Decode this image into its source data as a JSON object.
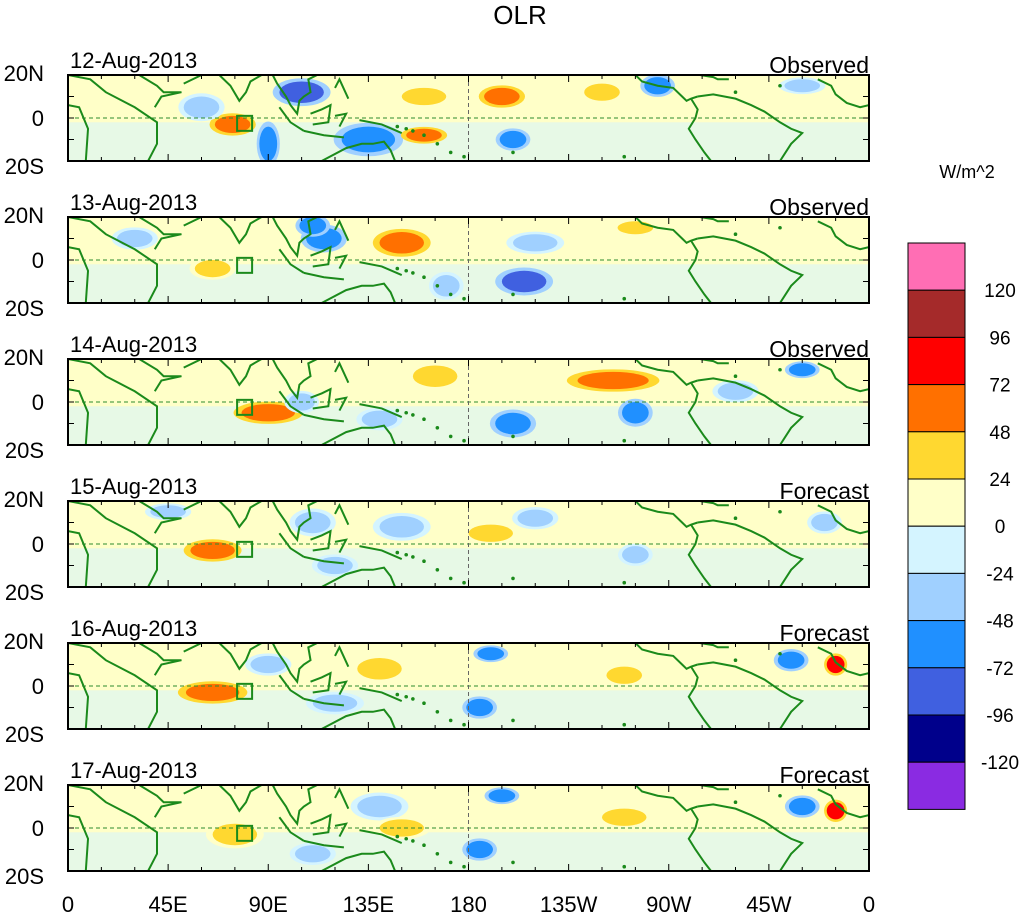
{
  "chart_data": {
    "type": "heatmap",
    "title": "OLR",
    "units": "W/m^2",
    "lat_range": [
      -20,
      20
    ],
    "lon_range": [
      0,
      360
    ],
    "y_tick_labels": [
      "20N",
      "0",
      "20S"
    ],
    "x_tick_labels": [
      "0",
      "45E",
      "90E",
      "135E",
      "180",
      "135W",
      "90W",
      "45W",
      "0"
    ],
    "colorbar": {
      "labels": [
        "120",
        "96",
        "72",
        "48",
        "24",
        "0",
        "-24",
        "-48",
        "-72",
        "-96",
        "-120"
      ],
      "colors": [
        "#ff6eb4",
        "#a52a2a",
        "#ff0000",
        "#ff7000",
        "#ffd830",
        "#ffffc8",
        "#d4f4ff",
        "#a0d0ff",
        "#2090ff",
        "#4060e0",
        "#00008b",
        "#8a2be2"
      ]
    },
    "panels": [
      {
        "date": "12-Aug-2013",
        "kind": "Observed"
      },
      {
        "date": "13-Aug-2013",
        "kind": "Observed"
      },
      {
        "date": "14-Aug-2013",
        "kind": "Observed"
      },
      {
        "date": "15-Aug-2013",
        "kind": "Forecast"
      },
      {
        "date": "16-Aug-2013",
        "kind": "Forecast"
      },
      {
        "date": "17-Aug-2013",
        "kind": "Forecast"
      }
    ],
    "anomaly_blobs": [
      [
        [
          -10,
          135,
          12,
          6,
          -60
        ],
        [
          12,
          105,
          10,
          5,
          -90
        ],
        [
          15,
          265,
          6,
          4,
          -70
        ],
        [
          10,
          195,
          8,
          4,
          48
        ],
        [
          10,
          160,
          10,
          4,
          40
        ],
        [
          -3,
          74,
          8,
          4,
          48
        ],
        [
          -8,
          160,
          8,
          3,
          48
        ],
        [
          -12,
          90,
          4,
          8,
          -60
        ],
        [
          -10,
          200,
          6,
          4,
          -60
        ],
        [
          5,
          60,
          8,
          5,
          -40
        ],
        [
          15,
          330,
          8,
          3,
          -30
        ],
        [
          12,
          240,
          8,
          4,
          30
        ]
      ],
      [
        [
          8,
          150,
          10,
          5,
          60
        ],
        [
          10,
          115,
          8,
          5,
          -60
        ],
        [
          -10,
          205,
          10,
          5,
          -90
        ],
        [
          16,
          110,
          6,
          4,
          -70
        ],
        [
          -4,
          65,
          8,
          4,
          40
        ],
        [
          8,
          210,
          10,
          4,
          -40
        ],
        [
          15,
          255,
          8,
          3,
          30
        ],
        [
          10,
          30,
          8,
          4,
          -30
        ],
        [
          -12,
          170,
          6,
          5,
          -40
        ]
      ],
      [
        [
          10,
          245,
          16,
          4,
          60
        ],
        [
          -5,
          90,
          12,
          4,
          48
        ],
        [
          -10,
          200,
          8,
          5,
          -70
        ],
        [
          12,
          165,
          10,
          5,
          40
        ],
        [
          0,
          105,
          6,
          4,
          -48
        ],
        [
          -5,
          255,
          6,
          5,
          -50
        ],
        [
          15,
          330,
          6,
          3,
          -50
        ],
        [
          5,
          300,
          8,
          4,
          -30
        ],
        [
          -8,
          140,
          8,
          4,
          -40
        ]
      ],
      [
        [
          -3,
          65,
          10,
          4,
          48
        ],
        [
          10,
          110,
          8,
          5,
          -40
        ],
        [
          8,
          150,
          10,
          5,
          -40
        ],
        [
          12,
          210,
          8,
          4,
          -30
        ],
        [
          10,
          340,
          6,
          4,
          -48
        ],
        [
          -5,
          255,
          6,
          4,
          -40
        ],
        [
          5,
          190,
          10,
          4,
          24
        ],
        [
          -10,
          120,
          8,
          4,
          -40
        ],
        [
          15,
          45,
          8,
          3,
          -30
        ]
      ],
      [
        [
          -3,
          65,
          12,
          4,
          55
        ],
        [
          15,
          190,
          6,
          3,
          -70
        ],
        [
          12,
          325,
          6,
          4,
          -60
        ],
        [
          10,
          345,
          4,
          4,
          72
        ],
        [
          -10,
          185,
          6,
          4,
          -50
        ],
        [
          8,
          140,
          10,
          5,
          30
        ],
        [
          -8,
          120,
          10,
          4,
          -40
        ],
        [
          10,
          90,
          8,
          4,
          -30
        ],
        [
          5,
          250,
          8,
          4,
          24
        ]
      ],
      [
        [
          15,
          195,
          6,
          3,
          -70
        ],
        [
          10,
          330,
          6,
          4,
          -60
        ],
        [
          8,
          345,
          4,
          4,
          72
        ],
        [
          -3,
          75,
          10,
          5,
          40
        ],
        [
          10,
          140,
          10,
          5,
          -40
        ],
        [
          -10,
          185,
          6,
          4,
          -50
        ],
        [
          0,
          150,
          10,
          4,
          30
        ],
        [
          -12,
          110,
          8,
          4,
          -40
        ],
        [
          5,
          250,
          10,
          4,
          24
        ]
      ]
    ]
  }
}
